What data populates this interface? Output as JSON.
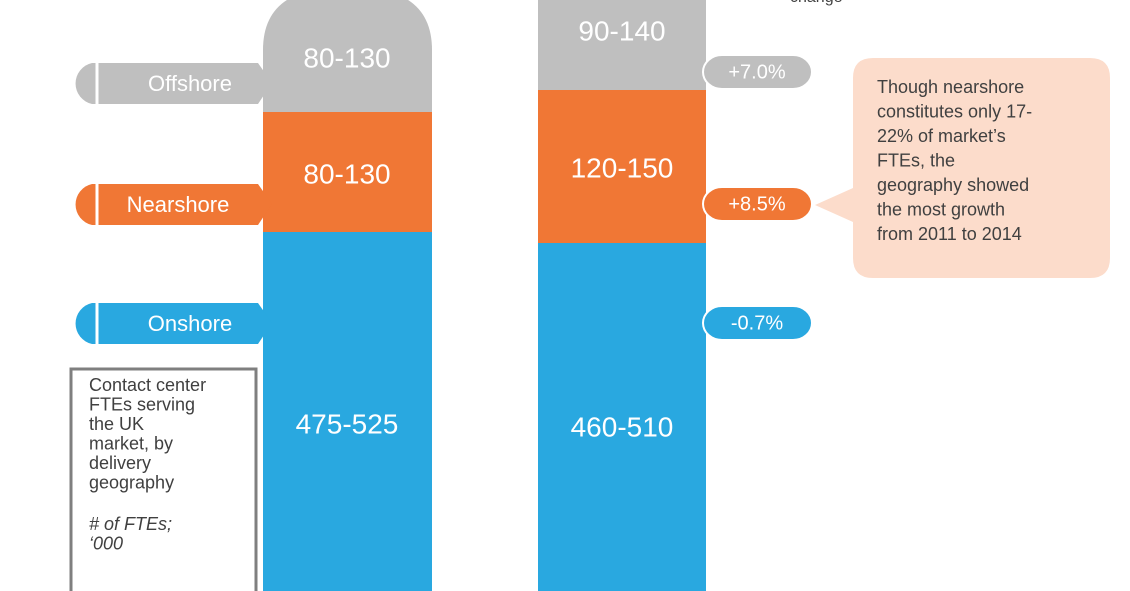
{
  "header_note": "change",
  "geographies": [
    "Offshore",
    "Nearshore",
    "Onshore"
  ],
  "bars": [
    {
      "segments": [
        "80-130",
        "80-130",
        "475-525"
      ]
    },
    {
      "segments": [
        "90-140",
        "120-150",
        "460-510"
      ]
    }
  ],
  "changes": [
    "+7.0%",
    "+8.5%",
    "-0.7%"
  ],
  "callout": {
    "lines": [
      "Though nearshore",
      "constitutes only 17-",
      "22% of market’s",
      "FTEs, the",
      "geography showed",
      "the most growth",
      "from 2011 to 2014"
    ]
  },
  "description_box": {
    "lines": [
      "Contact center",
      "FTEs serving",
      "the UK",
      "market, by",
      "delivery",
      "geography"
    ],
    "unit_lines": [
      "# of FTEs;",
      "‘000"
    ]
  }
}
